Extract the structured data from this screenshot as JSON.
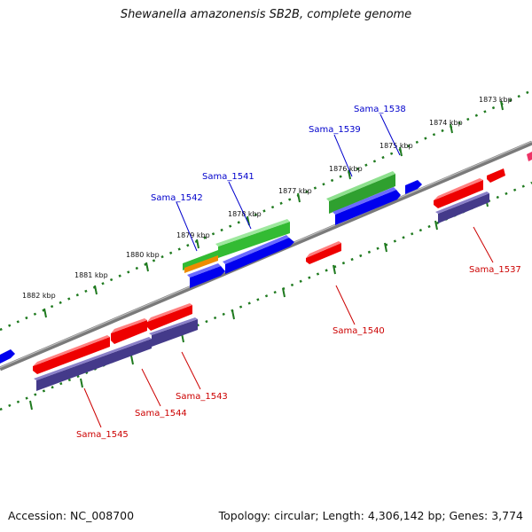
{
  "title": "Shewanella amazonensis SB2B, complete genome",
  "footer": {
    "accession": "Accession: NC_008700",
    "stats": "Topology: circular; Length: 4,306,142 bp; Genes: 3,774"
  },
  "colors": {
    "background": "#ffffff",
    "backbone": "#7a7a7a",
    "tick_dots": "#1f7a1f",
    "cds_forward": "#0000ee",
    "cds_reverse": "#ee0000",
    "orthologs": "#443a8a",
    "rna_green": "#33bb33",
    "rna_orange": "#ee8c00",
    "label_forward": "#0000cc",
    "label_reverse": "#cc0000"
  },
  "scale_labels": [
    "1873 kbp",
    "1874 kbp",
    "1875 kbp",
    "1876 kbp",
    "1877 kbp",
    "1878 kbp",
    "1879 kbp",
    "1880 kbp",
    "1881 kbp",
    "1882 kbp"
  ],
  "genes": {
    "forward": [
      "Sama_1538",
      "Sama_1539",
      "Sama_1541",
      "Sama_1542"
    ],
    "reverse": [
      "Sama_1537",
      "Sama_1540",
      "Sama_1543",
      "Sama_1544",
      "Sama_1545"
    ]
  }
}
